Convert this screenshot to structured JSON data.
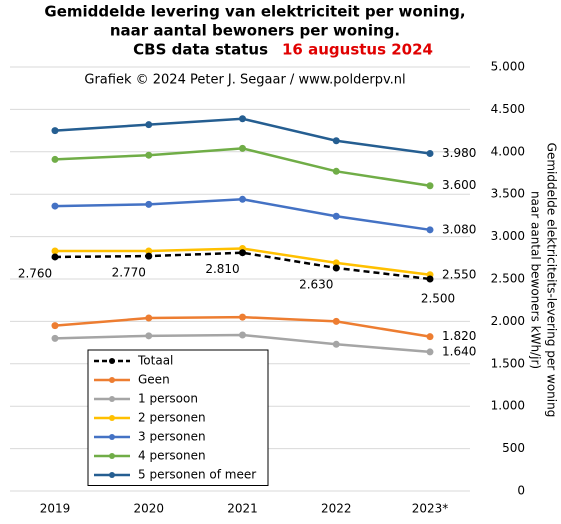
{
  "chart_data": {
    "type": "line",
    "title_lines": [
      "Gemiddelde levering van elektriciteit per woning,",
      "naar aantal bewoners per woning."
    ],
    "status_label": "CBS data status",
    "status_date": "16 augustus 2024",
    "credit": "Grafiek © 2024 Peter J. Segaar / www.polderpv.nl",
    "y_label": [
      "Gemiddelde elektriciteits-levering per woning",
      "naar aantal bewoners kWh/jr)"
    ],
    "categories": [
      "2019",
      "2020",
      "2021",
      "2022",
      "2023*"
    ],
    "ylim": [
      0,
      5000
    ],
    "yticks": [
      0,
      500,
      {
        "value": 1000,
        "label": "1.000"
      },
      {
        "value": 1500,
        "label": "1.500"
      },
      {
        "value": 2000,
        "label": "2.000"
      },
      {
        "value": 2500,
        "label": "2.500"
      },
      {
        "value": 3000,
        "label": "3.000"
      },
      {
        "value": 3500,
        "label": "3.500"
      },
      {
        "value": 4000,
        "label": "4.000"
      },
      {
        "value": 4500,
        "label": "4.500"
      },
      {
        "value": 5000,
        "label": "5.000"
      }
    ],
    "grid": true,
    "legend": "lower left",
    "series": [
      {
        "name": "Totaal",
        "color": "#000000",
        "style": "dashed",
        "values": [
          2760,
          2770,
          2810,
          2630,
          2500
        ],
        "value_labels": [
          "2.760",
          "2.770",
          "2.810",
          "2.630",
          "2.500"
        ]
      },
      {
        "name": "Geen",
        "color": "#ed7d31",
        "values": [
          1950,
          2040,
          2050,
          2000,
          1820
        ],
        "value_labels": [
          null,
          null,
          null,
          null,
          "1.820"
        ]
      },
      {
        "name": "1 persoon",
        "color": "#a5a5a5",
        "values": [
          1800,
          1830,
          1840,
          1730,
          1640
        ],
        "value_labels": [
          null,
          null,
          null,
          null,
          "1.640"
        ]
      },
      {
        "name": "2 personen",
        "color": "#ffc000",
        "values": [
          2830,
          2830,
          2860,
          2690,
          2550
        ],
        "value_labels": [
          null,
          null,
          null,
          null,
          "2.550"
        ]
      },
      {
        "name": "3 personen",
        "color": "#4472c4",
        "values": [
          3360,
          3380,
          3440,
          3240,
          3080
        ],
        "value_labels": [
          null,
          null,
          null,
          null,
          "3.080"
        ]
      },
      {
        "name": "4 personen",
        "color": "#70ad47",
        "values": [
          3910,
          3960,
          4040,
          3770,
          3600
        ],
        "value_labels": [
          null,
          null,
          null,
          null,
          "3.600"
        ]
      },
      {
        "name": "5 personen of meer",
        "color": "#255e91",
        "values": [
          4250,
          4320,
          4390,
          4130,
          3980
        ],
        "value_labels": [
          null,
          null,
          null,
          null,
          "3.980"
        ]
      }
    ]
  }
}
